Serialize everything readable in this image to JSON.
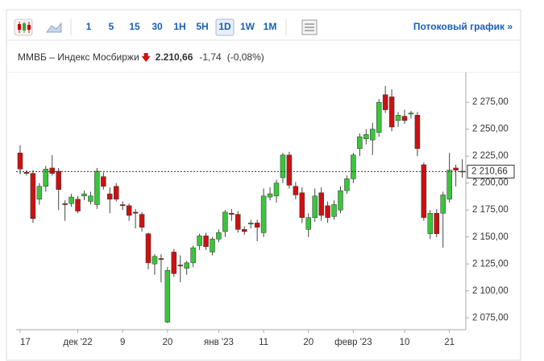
{
  "header": {
    "intervals": [
      "1",
      "5",
      "15",
      "30",
      "1Н",
      "5Н",
      "1D",
      "1W",
      "1M"
    ],
    "selected": "1D",
    "stream_link": "Потоковый график »"
  },
  "chart_data": {
    "type": "candlestick",
    "title": "ММВБ – Индекс Мосбиржи",
    "price": "2.210,66",
    "change": "-1,74",
    "change_pct": "(-0,08%)",
    "up_color": "#3cc43c",
    "down_color": "#cc1111",
    "categories": [
      "17",
      null,
      null,
      null,
      null,
      null,
      null,
      null,
      null,
      "дек '22",
      null,
      null,
      null,
      null,
      null,
      null,
      "9",
      null,
      null,
      null,
      null,
      null,
      null,
      "20",
      null,
      null,
      null,
      null,
      null,
      null,
      null,
      "янв '23",
      null,
      null,
      null,
      null,
      null,
      null,
      "11",
      null,
      null,
      null,
      null,
      null,
      null,
      "20",
      null,
      null,
      null,
      null,
      null,
      null,
      "февр '23",
      null,
      null,
      null,
      null,
      null,
      null,
      null,
      "10",
      null,
      null,
      null,
      null,
      null,
      null,
      "21",
      null,
      null
    ],
    "open": [
      2228,
      2210,
      2209,
      2185,
      2197,
      2214,
      2211,
      2181,
      2181,
      2185,
      2188,
      2183,
      2180,
      2206,
      2190,
      2197,
      2180,
      2179,
      2173,
      2171,
      2153,
      2125,
      2130,
      2071,
      2136,
      2124,
      2121,
      2126,
      2142,
      2151,
      2136,
      2148,
      2155,
      2172,
      2171,
      2157,
      2162,
      2163,
      2154,
      2187,
      2188,
      2205,
      2226,
      2197,
      2191,
      2157,
      2168,
      2191,
      2179,
      2169,
      2175,
      2193,
      2204,
      2232,
      2241,
      2240,
      2247,
      2282,
      2280,
      2258,
      2262,
      2264,
      2263,
      2217,
      2153,
      2172,
      2172,
      2185,
      2214,
      2211
    ],
    "high": [
      2235,
      2212,
      2212,
      2200,
      2216,
      2226,
      2214,
      2184,
      2190,
      2188,
      2193,
      2192,
      2214,
      2210,
      2196,
      2200,
      2183,
      2181,
      2176,
      2173,
      2154,
      2134,
      2134,
      2122,
      2139,
      2133,
      2128,
      2142,
      2153,
      2154,
      2150,
      2157,
      2175,
      2176,
      2174,
      2160,
      2166,
      2166,
      2195,
      2196,
      2203,
      2228,
      2229,
      2201,
      2196,
      2172,
      2195,
      2196,
      2183,
      2184,
      2197,
      2207,
      2228,
      2246,
      2250,
      2256,
      2278,
      2290,
      2287,
      2266,
      2268,
      2267,
      2266,
      2219,
      2175,
      2176,
      2192,
      2228,
      2217,
      2222
    ],
    "low": [
      2208,
      2207,
      2163,
      2180,
      2192,
      2207,
      2175,
      2165,
      2178,
      2172,
      2184,
      2180,
      2176,
      2194,
      2172,
      2183,
      2175,
      2165,
      2158,
      2155,
      2120,
      2115,
      2108,
      2070,
      2113,
      2108,
      2115,
      2122,
      2138,
      2138,
      2133,
      2145,
      2150,
      2165,
      2154,
      2152,
      2158,
      2146,
      2150,
      2184,
      2182,
      2200,
      2195,
      2185,
      2163,
      2150,
      2164,
      2165,
      2163,
      2166,
      2172,
      2190,
      2200,
      2225,
      2236,
      2226,
      2243,
      2265,
      2248,
      2252,
      2255,
      2260,
      2225,
      2165,
      2148,
      2150,
      2140,
      2182,
      2197,
      2205
    ],
    "close": [
      2213,
      2209,
      2167,
      2197,
      2213,
      2209,
      2194,
      2180,
      2187,
      2174,
      2190,
      2188,
      2211,
      2197,
      2185,
      2185,
      2179,
      2170,
      2172,
      2159,
      2126,
      2132,
      2129,
      2119,
      2116,
      2123,
      2126,
      2140,
      2151,
      2141,
      2148,
      2154,
      2173,
      2171,
      2157,
      2155,
      2163,
      2159,
      2188,
      2190,
      2200,
      2226,
      2198,
      2189,
      2168,
      2168,
      2188,
      2170,
      2168,
      2180,
      2193,
      2204,
      2226,
      2243,
      2245,
      2250,
      2275,
      2268,
      2252,
      2263,
      2258,
      2265,
      2232,
      2168,
      2172,
      2153,
      2189,
      2212,
      2212,
      2210.66
    ],
    "last_price": {
      "value": 2210.66,
      "label": "2 210,66"
    },
    "ylim": [
      2064,
      2299
    ],
    "yticks": [
      {
        "value": 2075,
        "label": "2 075,00"
      },
      {
        "value": 2100,
        "label": "2 100,00"
      },
      {
        "value": 2125,
        "label": "2 125,00"
      },
      {
        "value": 2150,
        "label": "2 150,00"
      },
      {
        "value": 2175,
        "label": "2 175,00"
      },
      {
        "value": 2200,
        "label": "2 200,00"
      },
      {
        "value": 2225,
        "label": "2 225,00"
      },
      {
        "value": 2250,
        "label": "2 250,00"
      },
      {
        "value": 2275,
        "label": "2 275,00"
      }
    ],
    "grid": false
  }
}
